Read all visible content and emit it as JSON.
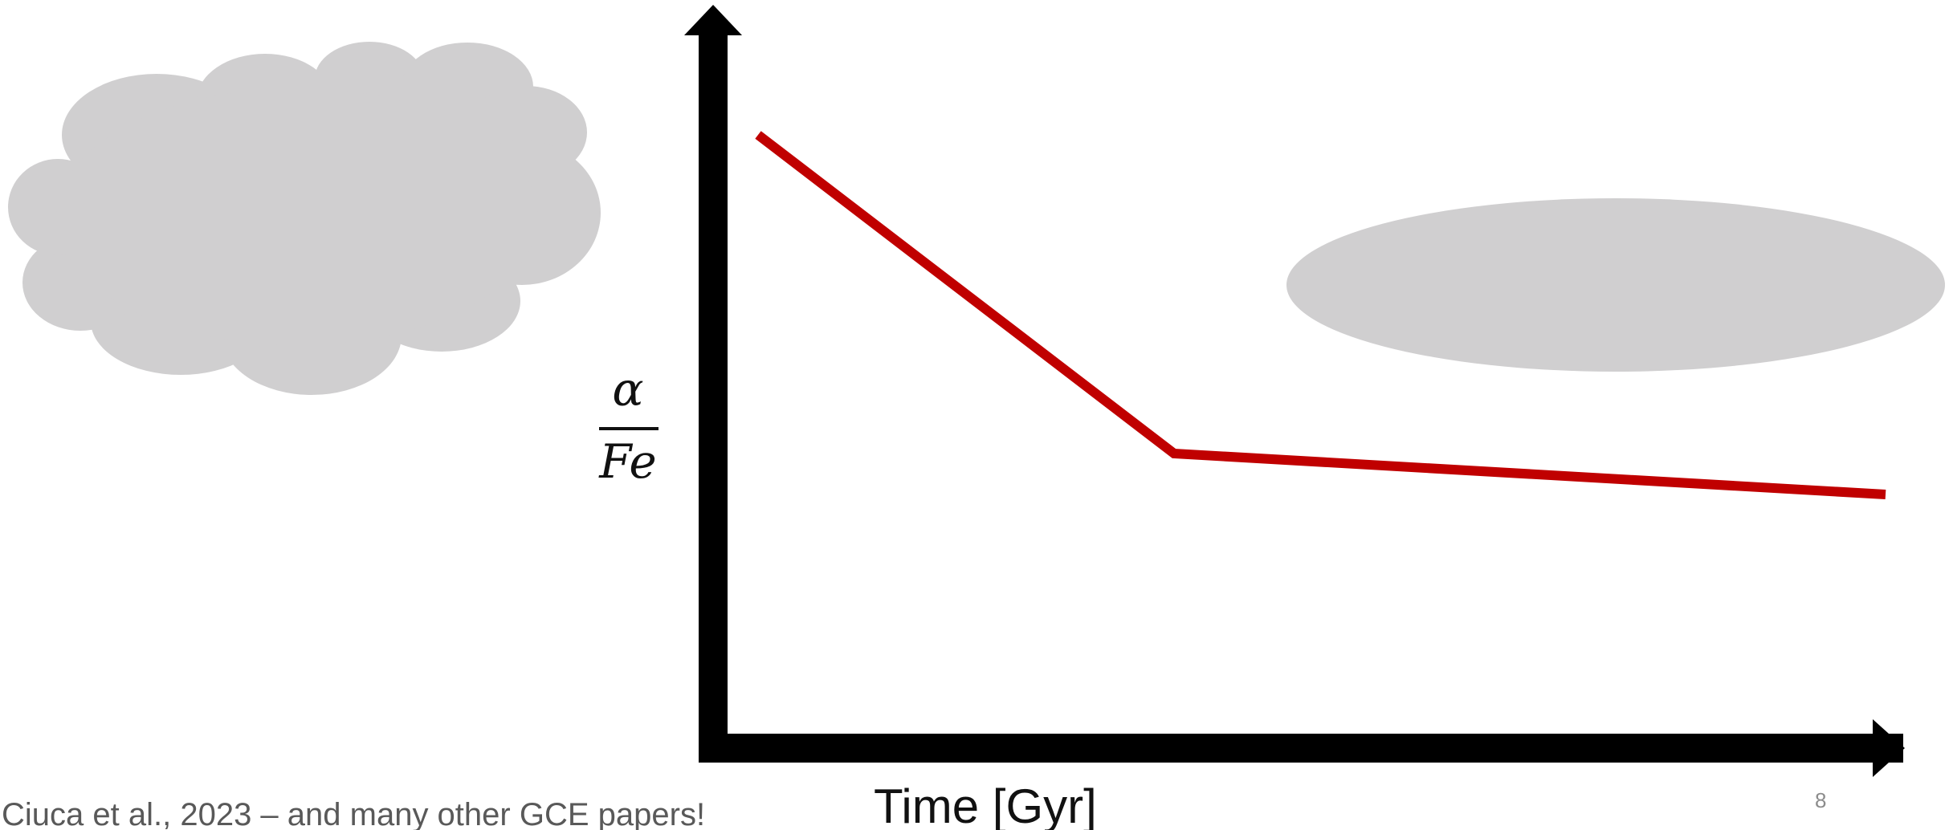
{
  "colors": {
    "background": "#ffffff",
    "axis": "#000000",
    "trend_line": "#c00000",
    "shapes": "#d0cfd0",
    "citation_text": "#595959",
    "page_number_text": "#8c8c8c"
  },
  "diagram": {
    "ylabel": {
      "numerator": "α",
      "denominator": "Fe"
    },
    "xlabel": "Time [Gyr]",
    "shapes": [
      {
        "kind": "cloud",
        "icon": "cloud-shape"
      },
      {
        "kind": "ellipse",
        "icon": "ellipse-shape"
      }
    ],
    "trend_line": {
      "description": "steep decline then shallow decline",
      "segments": 2
    }
  },
  "citation": "Ciuca et al., 2023 – and many other GCE papers!",
  "page_number": "8"
}
